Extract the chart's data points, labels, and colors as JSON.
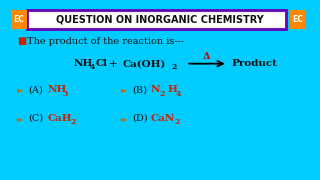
{
  "bg_color": "#faeec8",
  "border_color": "#00ccff",
  "title": "QUESTION ON INORGANIC CHEMISTRY",
  "title_border": "#6600bb",
  "ec_bg": "#ff8800",
  "ec_text": "EC",
  "question_text": "The product of the reaction is---",
  "delta": "Δ",
  "text_black": "#111111",
  "text_red": "#cc0000",
  "text_formula": "#cc2200",
  "text_label": "#111111"
}
